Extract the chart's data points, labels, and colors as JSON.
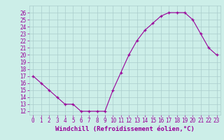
{
  "x": [
    0,
    1,
    2,
    3,
    4,
    5,
    6,
    7,
    8,
    9,
    10,
    11,
    12,
    13,
    14,
    15,
    16,
    17,
    18,
    19,
    20,
    21,
    22,
    23
  ],
  "y": [
    17,
    16,
    15,
    14,
    13,
    13,
    12,
    12,
    12,
    12,
    15,
    17.5,
    20,
    22,
    23.5,
    24.5,
    25.5,
    26,
    26,
    26,
    25,
    23,
    21,
    20
  ],
  "line_color": "#990099",
  "marker": "+",
  "bg_color": "#cceee8",
  "grid_color": "#aacccc",
  "xlabel": "Windchill (Refroidissement éolien,°C)",
  "ylim": [
    11.5,
    27
  ],
  "xlim": [
    -0.5,
    23.5
  ],
  "yticks": [
    12,
    13,
    14,
    15,
    16,
    17,
    18,
    19,
    20,
    21,
    22,
    23,
    24,
    25,
    26
  ],
  "xticks": [
    0,
    1,
    2,
    3,
    4,
    5,
    6,
    7,
    8,
    9,
    10,
    11,
    12,
    13,
    14,
    15,
    16,
    17,
    18,
    19,
    20,
    21,
    22,
    23
  ],
  "tick_fontsize": 5.5,
  "xlabel_fontsize": 6.5,
  "label_color": "#990099"
}
